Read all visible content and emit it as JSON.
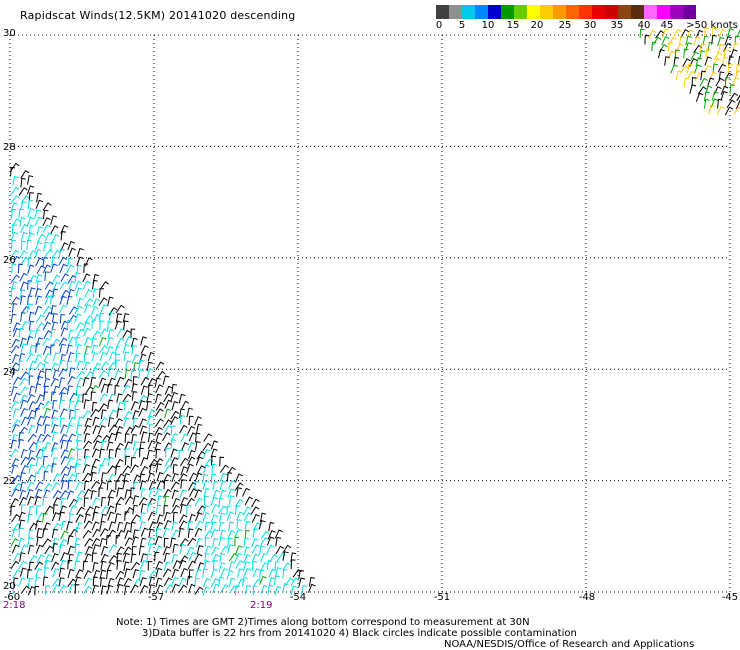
{
  "title": "Rapidscat Winds(12.5KM) 20141020 descending",
  "colorbar": {
    "labels": [
      "0",
      "5",
      "10",
      "15",
      "20",
      "25",
      "30",
      "35",
      "40",
      "45",
      ">50 knots"
    ],
    "colors": [
      "#404040",
      "#909090",
      "#00c8f0",
      "#0088ff",
      "#0000cc",
      "#009900",
      "#66cc00",
      "#ffff00",
      "#ffcc00",
      "#ff9900",
      "#ff6600",
      "#ff3300",
      "#e80000",
      "#cc0000",
      "#8b4513",
      "#5a2d0c",
      "#ff66ff",
      "#ff00ff",
      "#a000c0",
      "#7000a0"
    ]
  },
  "axes": {
    "lat_labels": [
      "30",
      "28",
      "26",
      "24",
      "22",
      "20"
    ],
    "lon_labels": [
      "-60",
      "-57",
      "-54",
      "-51",
      "-48",
      "-45"
    ]
  },
  "times": [
    "2:18",
    "2:19"
  ],
  "notes": {
    "line1": "Note: 1) Times are GMT 2)Times along bottom correspond to measurement at 30N",
    "line2": "3)Data buffer is 22 hrs from 20141020 4) Black circles indicate possible contamination",
    "credit": "NOAA/NESDIS/Office of Research and Applications"
  },
  "map": {
    "lon_range": [
      -60,
      -45
    ],
    "lat_range": [
      20,
      30
    ],
    "grid_lon": [
      -60,
      -57,
      -54,
      -51,
      -48,
      -45
    ],
    "grid_lat": [
      20,
      22,
      24,
      26,
      28,
      30
    ],
    "wind_colors": {
      "calm": "#000000",
      "light": "#00e0e0",
      "moderate": "#0040cc",
      "fresh": "#00aa00",
      "strong": "#ffcc00"
    }
  }
}
